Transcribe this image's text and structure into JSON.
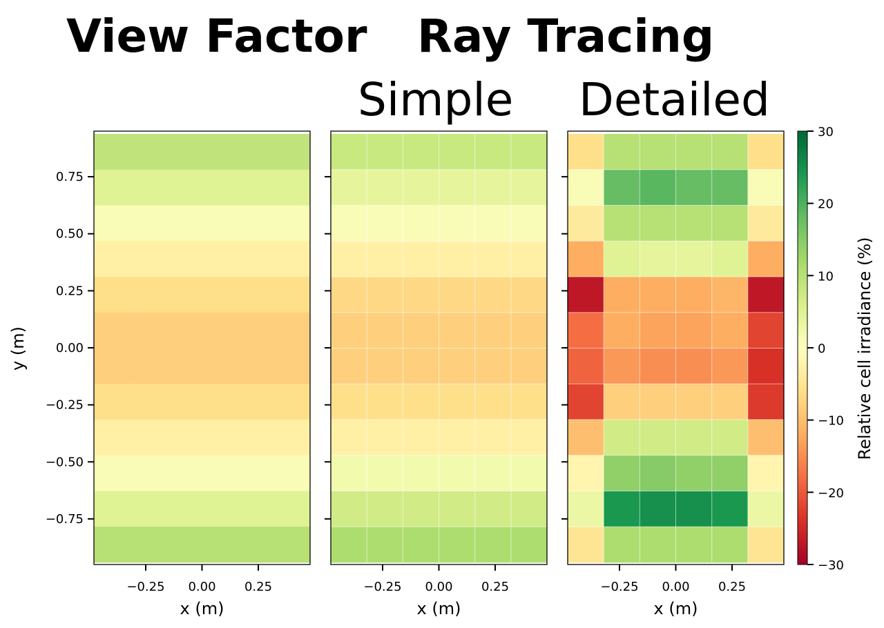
{
  "headings": {
    "view_factor": "View Factor",
    "ray_tracing": "Ray Tracing",
    "simple": "Simple",
    "detailed": "Detailed"
  },
  "chart_data": {
    "type": "heatmap",
    "colormap": "RdYlGn",
    "value_range": [
      -30,
      30
    ],
    "colorbar": {
      "label": "Relative cell irradiance (%)",
      "ticks": [
        30,
        20,
        10,
        0,
        -10,
        -20,
        -30
      ],
      "tick_labels": [
        "30",
        "20",
        "10",
        "0",
        "−10",
        "−20",
        "−30"
      ]
    },
    "x_ticks": [
      -0.25,
      0.0,
      0.25
    ],
    "x_tick_labels": [
      "−0.25",
      "0.00",
      "0.25"
    ],
    "y_ticks": [
      0.75,
      0.5,
      0.25,
      0.0,
      -0.25,
      -0.5,
      -0.75
    ],
    "y_tick_labels": [
      "0.75",
      "0.50",
      "0.25",
      "0.00",
      "−0.25",
      "−0.50",
      "−0.75"
    ],
    "x_range": [
      -0.48,
      0.48
    ],
    "y_range": [
      -0.95,
      0.95
    ],
    "ylabel": "y (m)",
    "panels": [
      {
        "xlabel": "x (m)",
        "rows": [
          [
            9,
            9,
            9,
            9,
            9,
            9
          ],
          [
            5,
            5,
            5,
            5,
            5,
            5
          ],
          [
            1,
            1,
            1,
            1,
            1,
            1
          ],
          [
            -3,
            -3,
            -3,
            -3,
            -3,
            -3
          ],
          [
            -6,
            -6,
            -6,
            -6,
            -6,
            -6
          ],
          [
            -8,
            -8,
            -8,
            -8,
            -8,
            -8
          ],
          [
            -8,
            -8,
            -8,
            -8,
            -8,
            -8
          ],
          [
            -6,
            -6,
            -6,
            -6,
            -6,
            -6
          ],
          [
            -3,
            -3,
            -3,
            -3,
            -3,
            -3
          ],
          [
            1,
            1,
            1,
            1,
            1,
            1
          ],
          [
            5,
            5,
            5,
            5,
            5,
            5
          ],
          [
            10,
            10,
            10,
            10,
            10,
            10
          ]
        ]
      },
      {
        "xlabel": "x (m)",
        "rows": [
          [
            8,
            8,
            8,
            8,
            8,
            8
          ],
          [
            4,
            4,
            4,
            4,
            4,
            4
          ],
          [
            1,
            1,
            1,
            1,
            1,
            1
          ],
          [
            -3,
            -3,
            -3,
            -3,
            -3,
            -3
          ],
          [
            -7,
            -7,
            -7,
            -7,
            -7,
            -7
          ],
          [
            -8,
            -8,
            -8,
            -8,
            -8,
            -8
          ],
          [
            -8,
            -8,
            -8,
            -8,
            -8,
            -8
          ],
          [
            -6,
            -6,
            -6,
            -6,
            -6,
            -6
          ],
          [
            -3,
            -3,
            -3,
            -3,
            -3,
            -3
          ],
          [
            2,
            2,
            2,
            2,
            2,
            2
          ],
          [
            7,
            7,
            7,
            7,
            7,
            7
          ],
          [
            11,
            11,
            11,
            11,
            11,
            11
          ]
        ]
      },
      {
        "xlabel": "x (m)",
        "rows": [
          [
            -6,
            10,
            10,
            10,
            10,
            -6
          ],
          [
            1,
            18,
            19,
            18,
            18,
            1
          ],
          [
            -4,
            10,
            10,
            10,
            10,
            -4
          ],
          [
            -12,
            5,
            4,
            4,
            5,
            -12
          ],
          [
            -27,
            -12,
            -12,
            -12,
            -11,
            -27
          ],
          [
            -18,
            -12,
            -13,
            -13,
            -12,
            -22
          ],
          [
            -19,
            -14,
            -15,
            -15,
            -14,
            -24
          ],
          [
            -22,
            -8,
            -8,
            -8,
            -8,
            -23
          ],
          [
            -10,
            7,
            7,
            7,
            7,
            -10
          ],
          [
            -2,
            14,
            15,
            14,
            14,
            -2
          ],
          [
            3,
            24,
            25,
            25,
            24,
            3
          ],
          [
            -5,
            11,
            11,
            11,
            11,
            -5
          ]
        ]
      }
    ]
  }
}
